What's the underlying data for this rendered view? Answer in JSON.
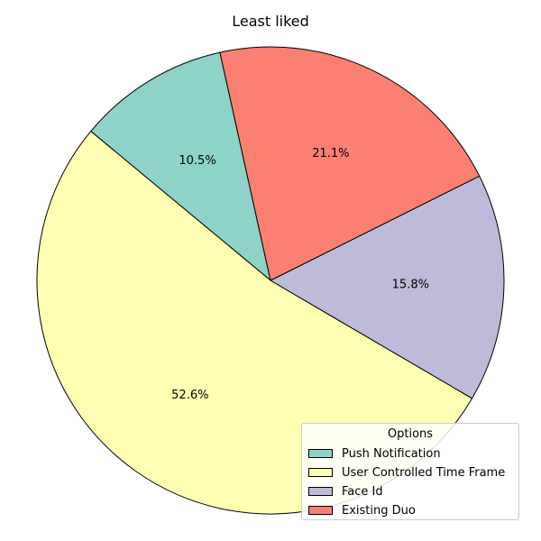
{
  "chart_data": {
    "type": "pie",
    "title": "Least liked",
    "categories": [
      "Push Notification",
      "User Controlled Time Frame",
      "Face Id",
      "Existing Duo"
    ],
    "values": [
      10.5,
      52.6,
      15.8,
      21.1
    ],
    "labels": [
      "10.5%",
      "52.6%",
      "15.8%",
      "21.1%"
    ],
    "colors": [
      "#8dd3c7",
      "#ffffb3",
      "#bebada",
      "#fb8072"
    ],
    "legend": {
      "title": "Options",
      "position": "lower-right"
    }
  }
}
